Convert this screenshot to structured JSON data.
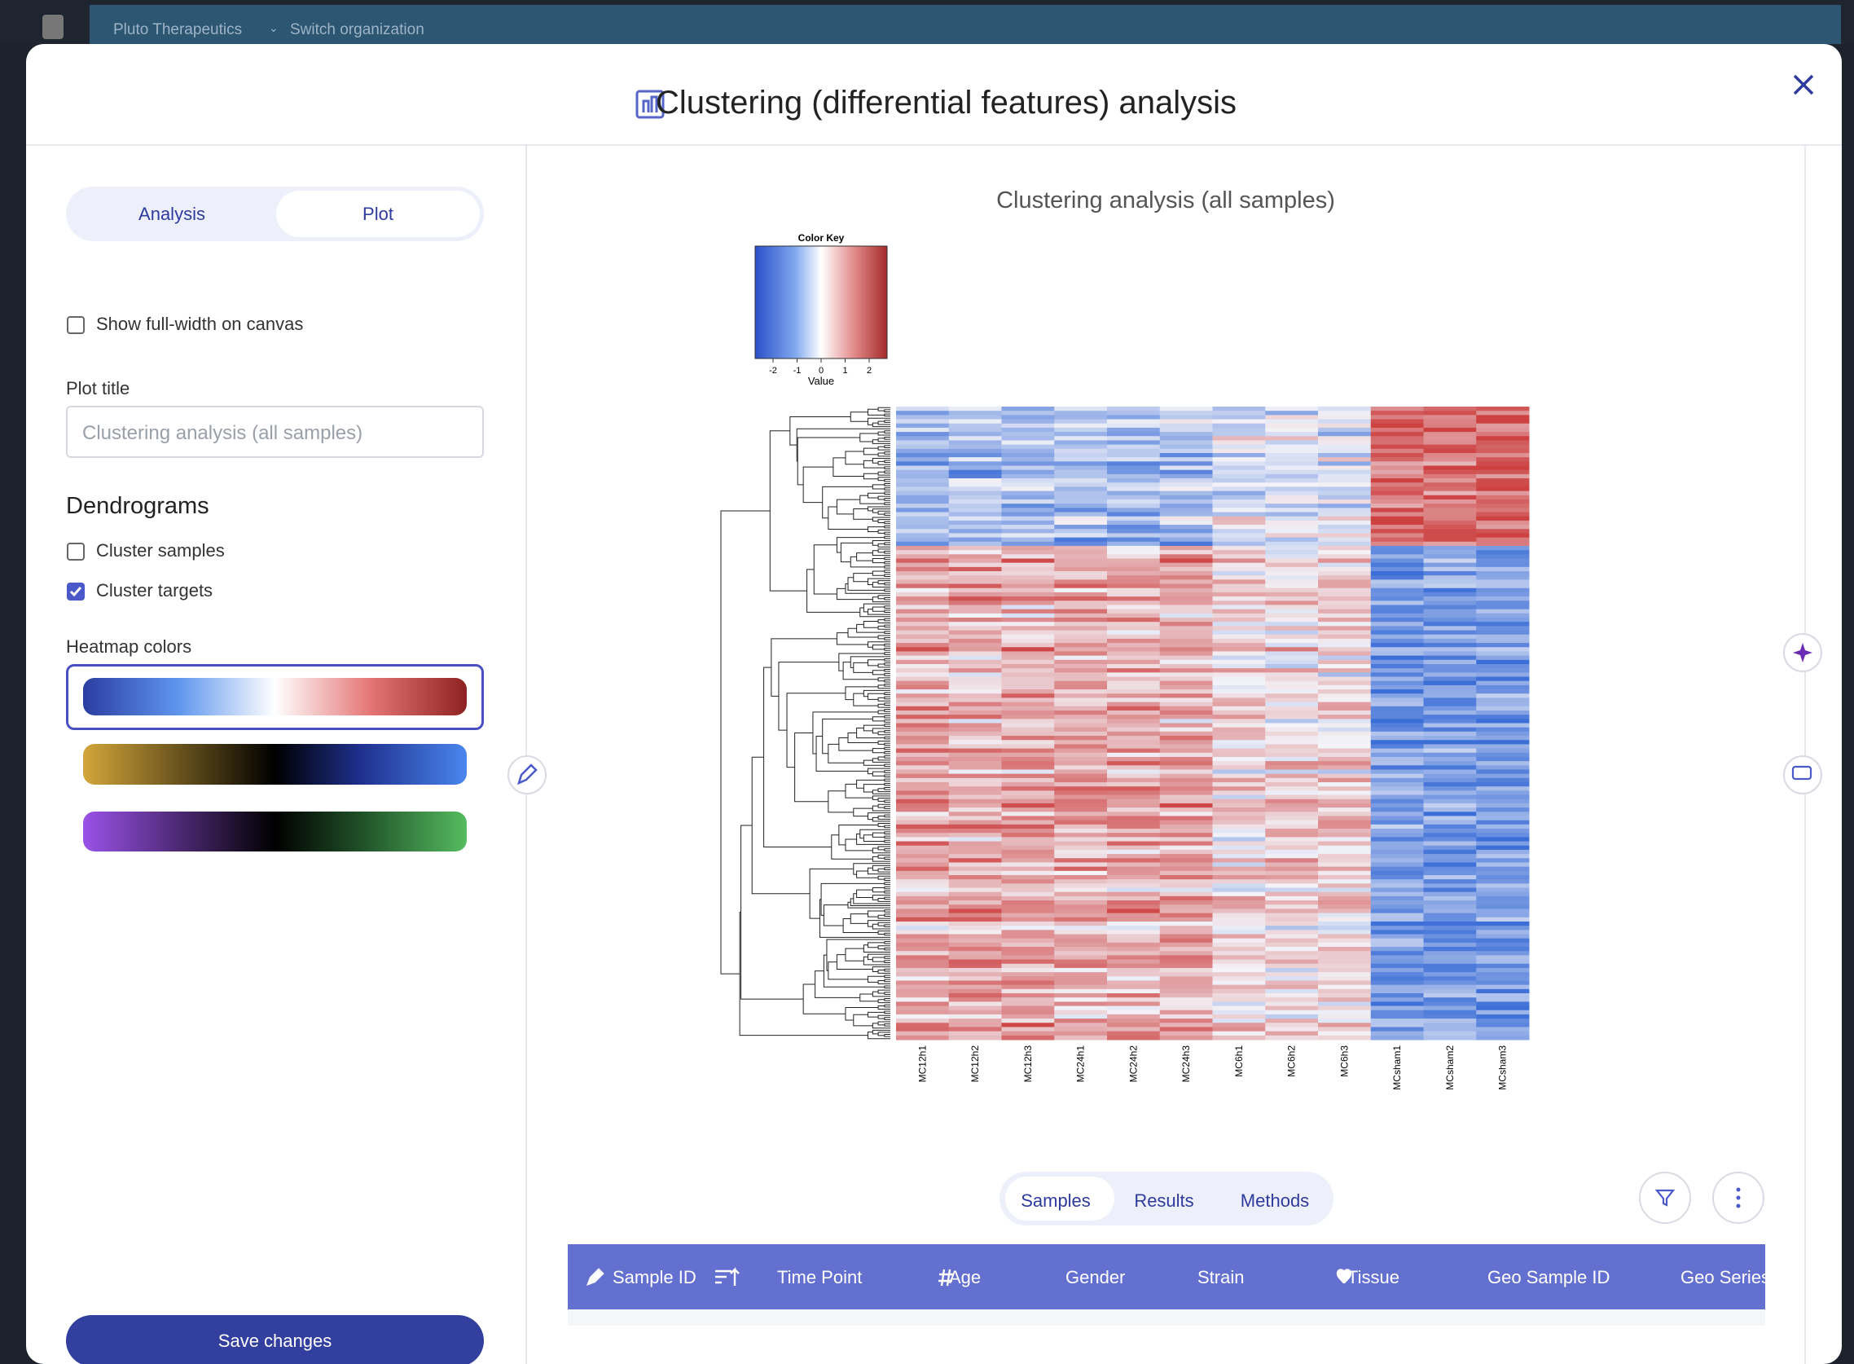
{
  "topbar": {
    "org": "Pluto Therapeutics",
    "switch": "Switch organization"
  },
  "modal": {
    "title": "Clustering (differential features) analysis"
  },
  "sidebar": {
    "tabs": [
      "Analysis",
      "Plot"
    ],
    "full_width": "Show full-width on canvas",
    "plot_title_label": "Plot title",
    "plot_title_placeholder": "Clustering analysis (all samples)",
    "dendrograms": "Dendrograms",
    "cluster_samples": "Cluster samples",
    "cluster_targets": "Cluster targets",
    "heatmap_colors": "Heatmap colors",
    "save": "Save changes"
  },
  "plot": {
    "title": "Clustering analysis (all samples)",
    "color_key": {
      "title": "Color Key",
      "ticks": [
        -2,
        -1,
        0,
        1,
        2
      ],
      "label": "Value"
    },
    "samples": [
      "MC12h1",
      "MC12h2",
      "MC12h3",
      "MC24h1",
      "MC24h2",
      "MC24h3",
      "MC6h1",
      "MC6h2",
      "MC6h3",
      "MCsham1",
      "MCsham2",
      "MCsham3"
    ]
  },
  "tabs": [
    "Samples",
    "Results",
    "Methods"
  ],
  "table": {
    "columns": [
      "Sample ID",
      "Time Point",
      "Age",
      "Gender",
      "Strain",
      "Tissue",
      "Geo Sample ID",
      "Geo Series"
    ]
  }
}
